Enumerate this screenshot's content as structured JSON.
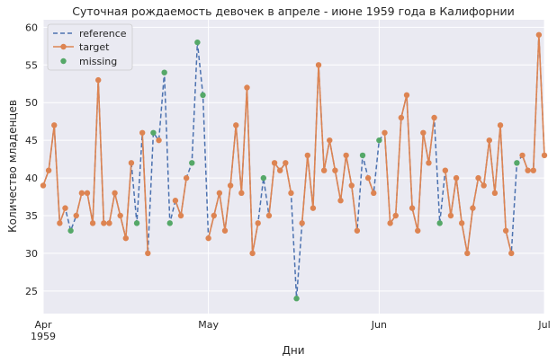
{
  "chart_data": {
    "type": "line",
    "title": "Суточная рождаемость девочек в апреле - июне 1959 года в Калифорнии",
    "xlabel": "Дни",
    "ylabel": "Количество младенцев",
    "x_start": "1959-04-01",
    "x_end": "1959-07-01",
    "xlim": [
      "1959-04-01",
      "1959-07-01"
    ],
    "ylim": [
      22,
      61
    ],
    "yticks": [
      25,
      30,
      35,
      40,
      45,
      50,
      55,
      60
    ],
    "xticks": [
      {
        "date": "1959-04-01",
        "label": "Apr",
        "sublabel": "1959"
      },
      {
        "date": "1959-05-01",
        "label": "May",
        "sublabel": ""
      },
      {
        "date": "1959-06-01",
        "label": "Jun",
        "sublabel": ""
      },
      {
        "date": "1959-07-01",
        "label": "Jul",
        "sublabel": ""
      }
    ],
    "grid": true,
    "legend_position": "top-left",
    "dates": [
      "1959-04-01",
      "1959-04-02",
      "1959-04-03",
      "1959-04-04",
      "1959-04-05",
      "1959-04-06",
      "1959-04-07",
      "1959-04-08",
      "1959-04-09",
      "1959-04-10",
      "1959-04-11",
      "1959-04-12",
      "1959-04-13",
      "1959-04-14",
      "1959-04-15",
      "1959-04-16",
      "1959-04-17",
      "1959-04-18",
      "1959-04-19",
      "1959-04-20",
      "1959-04-21",
      "1959-04-22",
      "1959-04-23",
      "1959-04-24",
      "1959-04-25",
      "1959-04-26",
      "1959-04-27",
      "1959-04-28",
      "1959-04-29",
      "1959-04-30",
      "1959-05-01",
      "1959-05-02",
      "1959-05-03",
      "1959-05-04",
      "1959-05-05",
      "1959-05-06",
      "1959-05-07",
      "1959-05-08",
      "1959-05-09",
      "1959-05-10",
      "1959-05-11",
      "1959-05-12",
      "1959-05-13",
      "1959-05-14",
      "1959-05-15",
      "1959-05-16",
      "1959-05-17",
      "1959-05-18",
      "1959-05-19",
      "1959-05-20",
      "1959-05-21",
      "1959-05-22",
      "1959-05-23",
      "1959-05-24",
      "1959-05-25",
      "1959-05-26",
      "1959-05-27",
      "1959-05-28",
      "1959-05-29",
      "1959-05-30",
      "1959-05-31",
      "1959-06-01",
      "1959-06-02",
      "1959-06-03",
      "1959-06-04",
      "1959-06-05",
      "1959-06-06",
      "1959-06-07",
      "1959-06-08",
      "1959-06-09",
      "1959-06-10",
      "1959-06-11",
      "1959-06-12",
      "1959-06-13",
      "1959-06-14",
      "1959-06-15",
      "1959-06-16",
      "1959-06-17",
      "1959-06-18",
      "1959-06-19",
      "1959-06-20",
      "1959-06-21",
      "1959-06-22",
      "1959-06-23",
      "1959-06-24",
      "1959-06-25",
      "1959-06-26",
      "1959-06-27",
      "1959-06-28",
      "1959-06-29",
      "1959-06-30",
      "1959-07-01"
    ],
    "series": [
      {
        "name": "reference",
        "style": "dashed",
        "color": "#4c72b0",
        "values": [
          39,
          41,
          47,
          34,
          36,
          33,
          35,
          38,
          38,
          34,
          53,
          34,
          34,
          38,
          35,
          32,
          42,
          34,
          46,
          30,
          46,
          45,
          54,
          34,
          37,
          35,
          40,
          42,
          58,
          51,
          32,
          35,
          38,
          33,
          39,
          47,
          38,
          52,
          30,
          34,
          40,
          35,
          42,
          41,
          42,
          38,
          24,
          34,
          43,
          36,
          55,
          41,
          45,
          41,
          37,
          43,
          39,
          33,
          43,
          40,
          38,
          45,
          46,
          34,
          35,
          48,
          51,
          36,
          33,
          46,
          42,
          48,
          34,
          41,
          35,
          40,
          34,
          30,
          36,
          40,
          39,
          45,
          38,
          47,
          33,
          30,
          42,
          43,
          41,
          41,
          59,
          43
        ]
      },
      {
        "name": "target",
        "style": "solid-with-markers",
        "color": "#dd8452",
        "values": [
          39,
          41,
          47,
          34,
          36,
          null,
          35,
          38,
          38,
          34,
          53,
          34,
          34,
          38,
          35,
          32,
          42,
          null,
          46,
          30,
          null,
          45,
          null,
          null,
          37,
          35,
          40,
          null,
          null,
          null,
          32,
          35,
          38,
          33,
          39,
          47,
          38,
          52,
          30,
          34,
          null,
          35,
          42,
          41,
          42,
          38,
          null,
          34,
          43,
          36,
          55,
          41,
          45,
          41,
          37,
          43,
          39,
          33,
          null,
          40,
          38,
          null,
          46,
          34,
          35,
          48,
          51,
          36,
          33,
          46,
          42,
          48,
          null,
          41,
          35,
          40,
          34,
          30,
          36,
          40,
          39,
          45,
          38,
          47,
          33,
          30,
          null,
          43,
          41,
          41,
          59,
          43
        ]
      },
      {
        "name": "missing",
        "style": "markers-only",
        "color": "#55a868",
        "values": [
          null,
          null,
          null,
          null,
          null,
          33,
          null,
          null,
          null,
          null,
          null,
          null,
          null,
          null,
          null,
          null,
          null,
          34,
          null,
          null,
          46,
          null,
          54,
          34,
          null,
          null,
          null,
          42,
          58,
          51,
          null,
          null,
          null,
          null,
          null,
          null,
          null,
          null,
          null,
          null,
          40,
          null,
          null,
          null,
          null,
          null,
          24,
          null,
          null,
          null,
          null,
          null,
          null,
          null,
          null,
          null,
          null,
          null,
          43,
          null,
          null,
          45,
          null,
          null,
          null,
          null,
          null,
          null,
          null,
          null,
          null,
          null,
          34,
          null,
          null,
          null,
          null,
          null,
          null,
          null,
          null,
          null,
          null,
          null,
          null,
          null,
          42,
          null,
          null,
          null,
          null,
          null
        ]
      }
    ]
  }
}
